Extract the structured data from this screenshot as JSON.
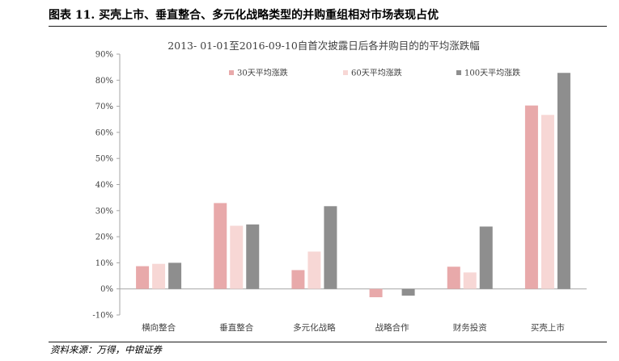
{
  "figure": {
    "title": "图表 11. 买壳上市、垂直整合、多元化战略类型的并购重组相对市场表现占优",
    "source": "资料来源：万得，中银证券"
  },
  "chart_data": {
    "type": "bar",
    "title": "2013- 01-01至2016-09-10自首次披露日后各并购目的的平均涨跌幅",
    "categories": [
      "横向整合",
      "垂直整合",
      "多元化战略",
      "战略合作",
      "财务投资",
      "买壳上市"
    ],
    "series": [
      {
        "name": "30天平均涨跌",
        "color": "#e8a9aa",
        "values": [
          8.7,
          32.9,
          7.2,
          -3.2,
          8.5,
          70.3
        ]
      },
      {
        "name": "60天平均涨跌",
        "color": "#f7d7d5",
        "values": [
          9.6,
          24.2,
          14.3,
          0.0,
          6.3,
          66.7
        ]
      },
      {
        "name": "100天平均涨跌",
        "color": "#8e8e8e",
        "values": [
          10.0,
          24.7,
          31.7,
          -2.6,
          23.9,
          82.8
        ]
      }
    ],
    "ylim": [
      -10,
      90
    ],
    "ytick_step": 10,
    "ytick_labels": [
      "-10%",
      "0%",
      "10%",
      "20%",
      "30%",
      "40%",
      "50%",
      "60%",
      "70%",
      "80%",
      "90%"
    ],
    "legend_position": "top",
    "grid": false
  }
}
